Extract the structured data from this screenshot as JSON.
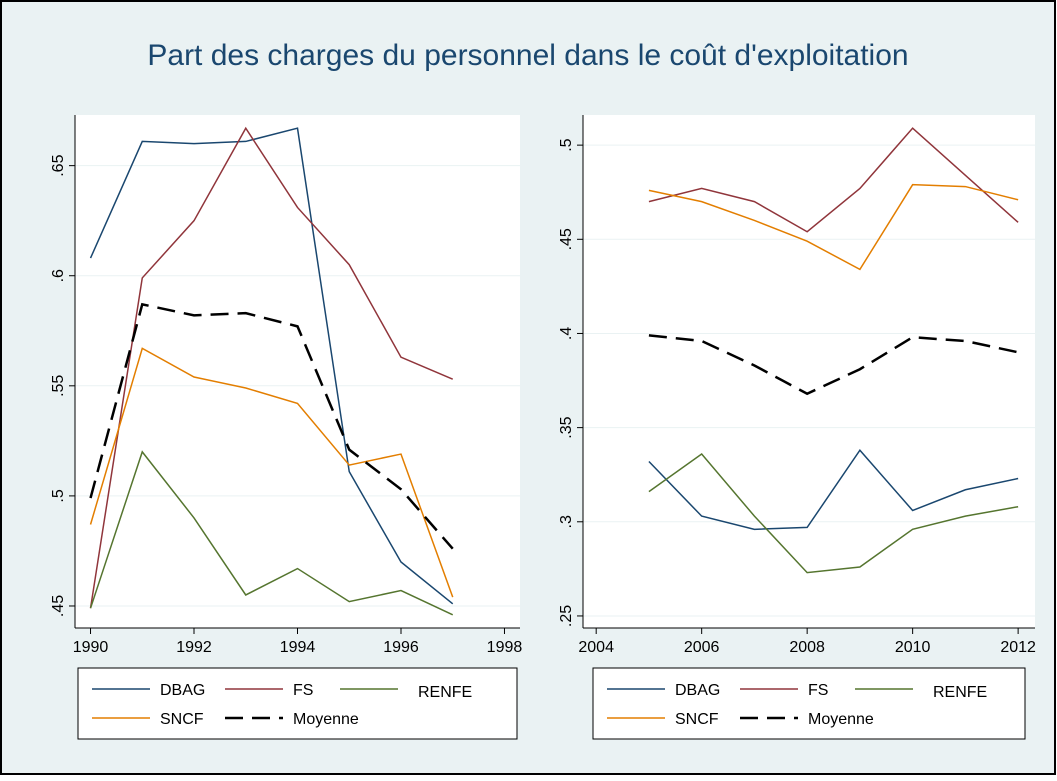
{
  "title": "Part des charges du personnel dans le coût d'exploitation",
  "chart_data": [
    {
      "type": "line",
      "x": [
        1990,
        1991,
        1992,
        1993,
        1994,
        1995,
        1996,
        1997
      ],
      "xlim": [
        1989.7,
        1998.3
      ],
      "xticks": [
        1990,
        1992,
        1994,
        1996,
        1998
      ],
      "ylim": [
        0.44,
        0.673
      ],
      "yticks": [
        {
          "value": 0.45,
          "label": ".45"
        },
        {
          "value": 0.5,
          "label": ".5"
        },
        {
          "value": 0.55,
          "label": ".55"
        },
        {
          "value": 0.6,
          "label": ".6"
        },
        {
          "value": 0.65,
          "label": ".65"
        }
      ],
      "grid": true,
      "series": [
        {
          "name": "DBAG",
          "color": "#1a476f",
          "values": [
            0.608,
            0.661,
            0.66,
            0.661,
            0.667,
            0.511,
            0.47,
            0.451
          ]
        },
        {
          "name": "FS",
          "color": "#90353b",
          "values": [
            0.449,
            0.599,
            0.625,
            0.667,
            0.631,
            0.605,
            0.563,
            0.553
          ]
        },
        {
          "name": "RENFE",
          "color": "#55752f",
          "values": [
            0.449,
            0.52,
            0.49,
            0.455,
            0.467,
            0.452,
            0.457,
            0.446
          ]
        },
        {
          "name": "SNCF",
          "color": "#e37e00",
          "values": [
            0.487,
            0.567,
            0.554,
            0.549,
            0.542,
            0.514,
            0.519,
            0.454
          ]
        },
        {
          "name": "Moyenne",
          "color": "#000000",
          "dashed": true,
          "values": [
            0.499,
            0.587,
            0.582,
            0.583,
            0.577,
            0.521,
            0.503,
            0.476
          ]
        }
      ]
    },
    {
      "type": "line",
      "x": [
        2005,
        2006,
        2007,
        2008,
        2009,
        2010,
        2011,
        2012
      ],
      "xlim": [
        2003.75,
        2012.32
      ],
      "xticks": [
        2004,
        2006,
        2008,
        2010,
        2012
      ],
      "ylim": [
        0.2436,
        0.516
      ],
      "yticks": [
        {
          "value": 0.25,
          "label": ".25"
        },
        {
          "value": 0.3,
          "label": ".3"
        },
        {
          "value": 0.35,
          "label": ".35"
        },
        {
          "value": 0.4,
          "label": ".4"
        },
        {
          "value": 0.45,
          "label": ".45"
        },
        {
          "value": 0.5,
          "label": ".5"
        }
      ],
      "grid": true,
      "series": [
        {
          "name": "DBAG",
          "color": "#1a476f",
          "values": [
            0.332,
            0.303,
            0.296,
            0.297,
            0.338,
            0.306,
            0.317,
            0.323
          ]
        },
        {
          "name": "FS",
          "color": "#90353b",
          "values": [
            0.47,
            0.477,
            0.47,
            0.454,
            0.477,
            0.509,
            0.484,
            0.459
          ]
        },
        {
          "name": "RENFE",
          "color": "#55752f",
          "values": [
            0.316,
            0.336,
            0.303,
            0.273,
            0.276,
            0.296,
            0.303,
            0.308
          ]
        },
        {
          "name": "SNCF",
          "color": "#e37e00",
          "values": [
            0.476,
            0.47,
            0.46,
            0.449,
            0.434,
            0.479,
            0.478,
            0.471
          ]
        },
        {
          "name": "Moyenne",
          "color": "#000000",
          "dashed": true,
          "values": [
            0.399,
            0.396,
            0.383,
            0.368,
            0.381,
            0.398,
            0.396,
            0.39
          ]
        }
      ]
    }
  ]
}
